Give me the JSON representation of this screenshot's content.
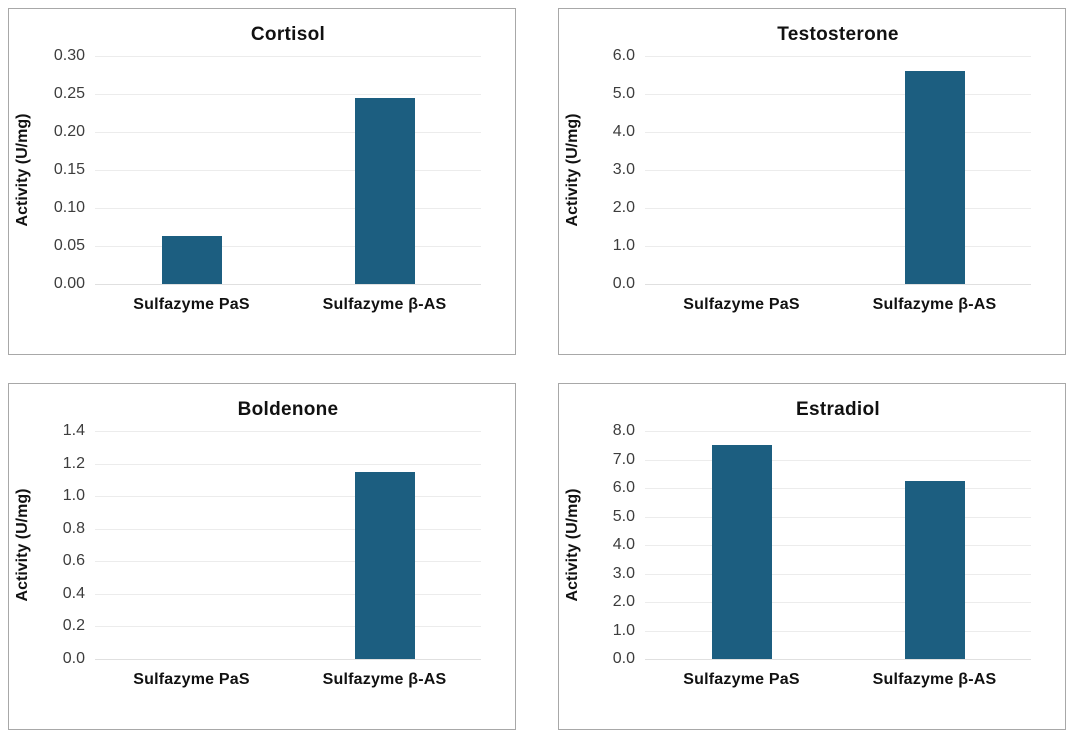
{
  "page": {
    "background": "#ffffff"
  },
  "style": {
    "bar_color": "#1C5E80",
    "gridline_color": "#ececec",
    "axis_line_color": "#e0e0e0",
    "panel_border_color": "#a8a8a8",
    "title_color": "#111111",
    "tick_label_color": "#3d3d3d"
  },
  "chart_data": [
    {
      "type": "bar",
      "title": "Cortisol",
      "ylabel": "Activity (U/mg)",
      "xlabel": "",
      "categories": [
        "Sulfazyme PaS",
        "Sulfazyme β-AS"
      ],
      "values": [
        0.063,
        0.245
      ],
      "ylim": [
        0,
        0.3
      ],
      "ytick_step": 0.05,
      "ytick_decimals": 2,
      "grid": true,
      "legend": false
    },
    {
      "type": "bar",
      "title": "Testosterone",
      "ylabel": "Activity (U/mg)",
      "xlabel": "",
      "categories": [
        "Sulfazyme PaS",
        "Sulfazyme β-AS"
      ],
      "values": [
        0,
        5.6
      ],
      "ylim": [
        0,
        6.0
      ],
      "ytick_step": 1.0,
      "ytick_decimals": 1,
      "grid": true,
      "legend": false
    },
    {
      "type": "bar",
      "title": "Boldenone",
      "ylabel": "Activity (U/mg)",
      "xlabel": "",
      "categories": [
        "Sulfazyme PaS",
        "Sulfazyme β-AS"
      ],
      "values": [
        0,
        1.15
      ],
      "ylim": [
        0,
        1.4
      ],
      "ytick_step": 0.2,
      "ytick_decimals": 1,
      "grid": true,
      "legend": false
    },
    {
      "type": "bar",
      "title": "Estradiol",
      "ylabel": "Activity (U/mg)",
      "xlabel": "",
      "categories": [
        "Sulfazyme PaS",
        "Sulfazyme β-AS"
      ],
      "values": [
        7.5,
        6.25
      ],
      "ylim": [
        0,
        8.0
      ],
      "ytick_step": 1.0,
      "ytick_decimals": 1,
      "grid": true,
      "legend": false
    }
  ]
}
